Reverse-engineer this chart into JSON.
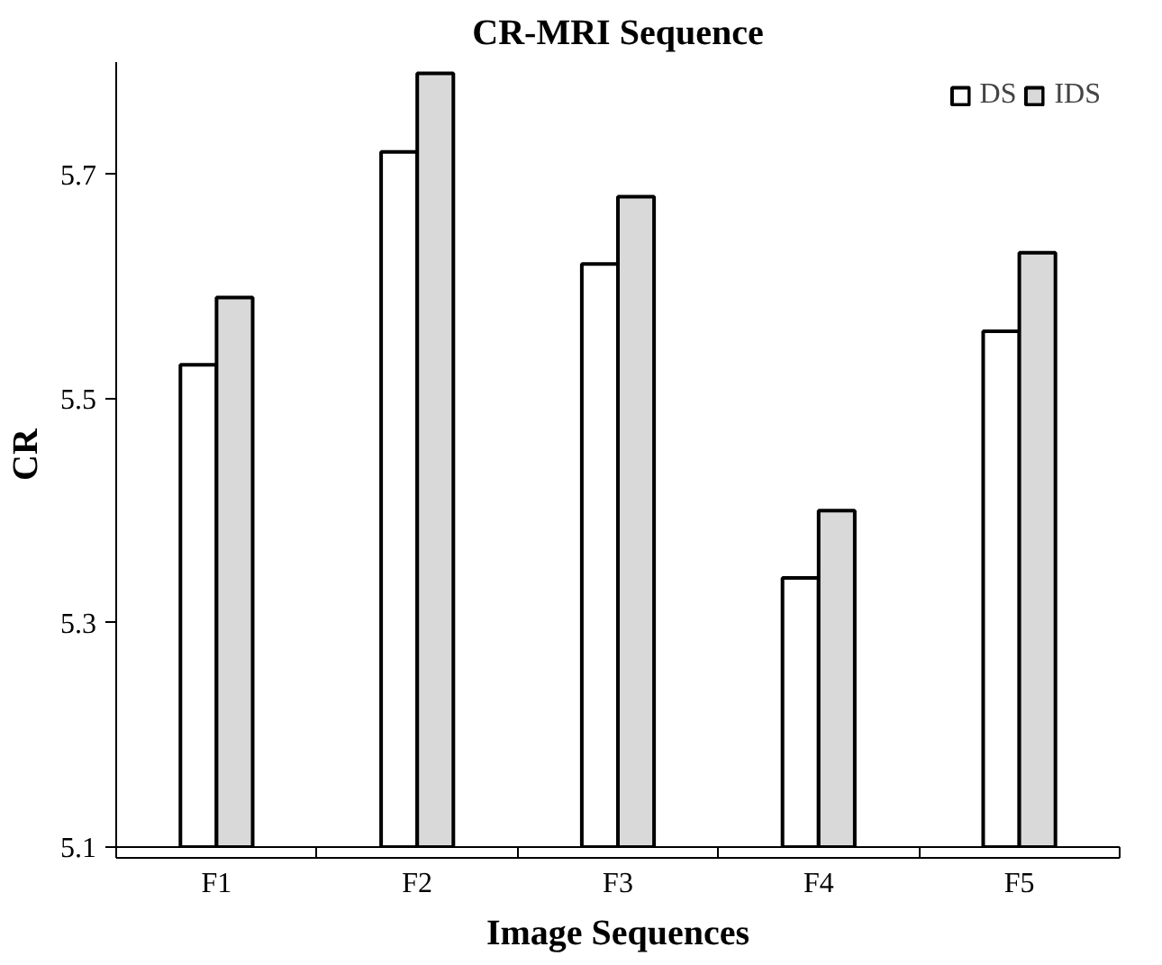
{
  "chart_data": {
    "type": "bar",
    "title": "CR-MRI Sequence",
    "xlabel": "Image Sequences",
    "ylabel": "CR",
    "categories": [
      "F1",
      "F2",
      "F3",
      "F4",
      "F5"
    ],
    "series": [
      {
        "name": "DS",
        "color": "#ffffff",
        "values": [
          5.53,
          5.72,
          5.62,
          5.34,
          5.56
        ]
      },
      {
        "name": "IDS",
        "color": "#d9d9d9",
        "values": [
          5.59,
          5.79,
          5.68,
          5.4,
          5.63
        ]
      }
    ],
    "ylim": [
      5.1,
      5.8
    ],
    "yticks": [
      5.1,
      5.3,
      5.5,
      5.7
    ],
    "grid": false,
    "legend": "top right"
  }
}
